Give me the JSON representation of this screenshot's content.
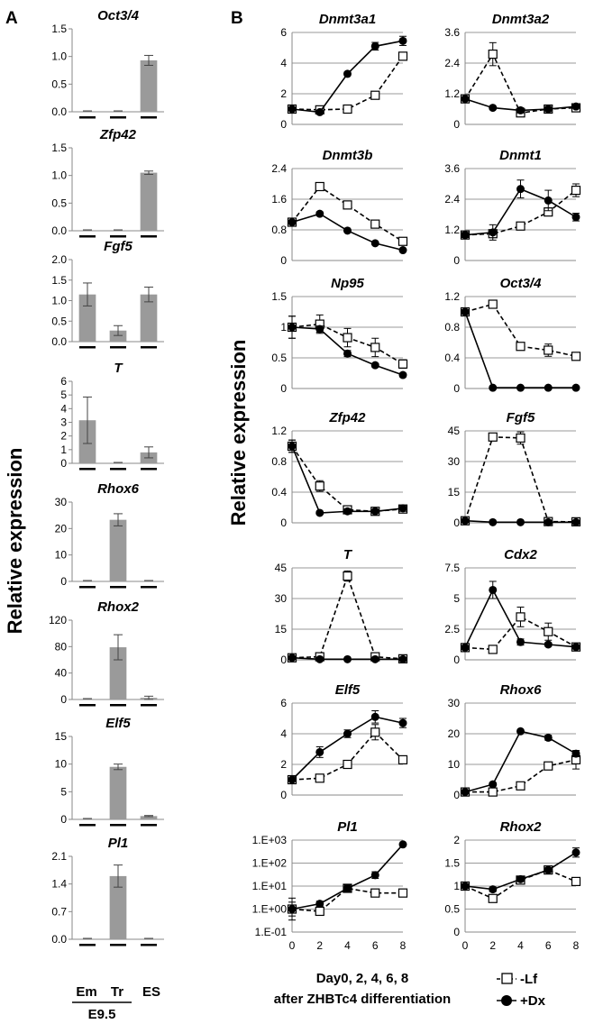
{
  "panel_labels": {
    "a": "A",
    "b": "B"
  },
  "ylabel": "Relative expression",
  "left_x": {
    "categories": [
      "Em",
      "Tr",
      "ES"
    ],
    "group_label": "E9.5"
  },
  "right_x": {
    "caption_line1": "Day0, 2, 4, 6, 8",
    "caption_line2": "after ZHBTc4 differentiation"
  },
  "legend": {
    "lf": "-Lf",
    "dx": "+Dx"
  },
  "chart_data": [
    {
      "type": "bar",
      "panel": "A",
      "title": "Oct3/4",
      "categories": [
        "Em",
        "Tr",
        "ES"
      ],
      "values": [
        0,
        0,
        0.93
      ],
      "errors": [
        0,
        0,
        0.09
      ],
      "ylim": [
        0,
        1.5
      ],
      "yticks": [
        "0.0",
        "0.5",
        "1.0",
        "1.5"
      ]
    },
    {
      "type": "bar",
      "panel": "A",
      "title": "Zfp42",
      "categories": [
        "Em",
        "Tr",
        "ES"
      ],
      "values": [
        0,
        0,
        1.05
      ],
      "errors": [
        0,
        0,
        0.03
      ],
      "ylim": [
        0,
        1.5
      ],
      "yticks": [
        "0.0",
        "0.5",
        "1.0",
        "1.5"
      ]
    },
    {
      "type": "bar",
      "panel": "A",
      "title": "Fgf5",
      "categories": [
        "Em",
        "Tr",
        "ES"
      ],
      "values": [
        1.15,
        0.27,
        1.15
      ],
      "errors": [
        0.28,
        0.12,
        0.18
      ],
      "ylim": [
        0,
        2
      ],
      "yticks": [
        "0.0",
        "0.5",
        "1.0",
        "1.5",
        "2.0"
      ]
    },
    {
      "type": "bar",
      "panel": "A",
      "title": "T",
      "categories": [
        "Em",
        "Tr",
        "ES"
      ],
      "values": [
        3.15,
        0,
        0.8
      ],
      "errors": [
        1.7,
        0,
        0.4
      ],
      "ylim": [
        0,
        6
      ],
      "yticks": [
        "0",
        "1",
        "2",
        "3",
        "4",
        "5",
        "6"
      ]
    },
    {
      "type": "bar",
      "panel": "A",
      "title": "Rhox6",
      "categories": [
        "Em",
        "Tr",
        "ES"
      ],
      "values": [
        0,
        23.3,
        0
      ],
      "errors": [
        0,
        2.3,
        0
      ],
      "ylim": [
        0,
        30
      ],
      "yticks": [
        "0",
        "10",
        "20",
        "30"
      ]
    },
    {
      "type": "bar",
      "panel": "A",
      "title": "Rhox2",
      "categories": [
        "Em",
        "Tr",
        "ES"
      ],
      "values": [
        0,
        79,
        2.5
      ],
      "errors": [
        0,
        19,
        2.5
      ],
      "ylim": [
        0,
        120
      ],
      "yticks": [
        "0",
        "40",
        "80",
        "120"
      ]
    },
    {
      "type": "bar",
      "panel": "A",
      "title": "Elf5",
      "categories": [
        "Em",
        "Tr",
        "ES"
      ],
      "values": [
        0,
        9.5,
        0.6
      ],
      "errors": [
        0,
        0.5,
        0.1
      ],
      "ylim": [
        0,
        15
      ],
      "yticks": [
        "0",
        "5",
        "10",
        "15"
      ]
    },
    {
      "type": "bar",
      "panel": "A",
      "title": "Pl1",
      "categories": [
        "Em",
        "Tr",
        "ES"
      ],
      "values": [
        0,
        1.6,
        0
      ],
      "errors": [
        0,
        0.28,
        0
      ],
      "ylim": [
        0,
        2.1
      ],
      "yticks": [
        "0.0",
        "0.7",
        "1.4",
        "2.1"
      ]
    },
    {
      "type": "line",
      "panel": "B",
      "title": "Dnmt3a1",
      "x": [
        0,
        2,
        4,
        6,
        8
      ],
      "series": [
        {
          "name": "-Lf",
          "values": [
            1,
            0.95,
            1.0,
            1.9,
            4.45
          ],
          "errors": [
            0.1,
            0.1,
            0.2,
            0.1,
            0.25
          ]
        },
        {
          "name": "+Dx",
          "values": [
            1,
            0.8,
            3.3,
            5.1,
            5.45
          ],
          "errors": [
            0.1,
            0.1,
            0.12,
            0.25,
            0.3
          ]
        }
      ],
      "ylim": [
        0,
        6
      ],
      "yticks": [
        "0",
        "2",
        "4",
        "6"
      ]
    },
    {
      "type": "line",
      "panel": "B",
      "title": "Dnmt3a2",
      "x": [
        0,
        2,
        4,
        6,
        8
      ],
      "series": [
        {
          "name": "-Lf",
          "values": [
            1,
            2.75,
            0.45,
            0.6,
            0.65
          ],
          "errors": [
            0.05,
            0.45,
            0.1,
            0.1,
            0.1
          ]
        },
        {
          "name": "+Dx",
          "values": [
            1,
            0.65,
            0.55,
            0.6,
            0.7
          ],
          "errors": [
            0.05,
            0.05,
            0.1,
            0.1,
            0.05
          ]
        }
      ],
      "ylim": [
        0,
        3.6
      ],
      "yticks": [
        "0",
        "1.2",
        "2.4",
        "3.6"
      ]
    },
    {
      "type": "line",
      "panel": "B",
      "title": "Dnmt3b",
      "x": [
        0,
        2,
        4,
        6,
        8
      ],
      "series": [
        {
          "name": "-Lf",
          "values": [
            1,
            1.93,
            1.45,
            0.95,
            0.5
          ],
          "errors": [
            0.05,
            0.1,
            0.05,
            0.08,
            0.05
          ]
        },
        {
          "name": "+Dx",
          "values": [
            1,
            1.22,
            0.78,
            0.45,
            0.27
          ],
          "errors": [
            0.05,
            0.05,
            0.03,
            0.03,
            0.03
          ]
        }
      ],
      "ylim": [
        0,
        2.4
      ],
      "yticks": [
        "0",
        "0.8",
        "1.6",
        "2.4"
      ]
    },
    {
      "type": "line",
      "panel": "B",
      "title": "Dnmt1",
      "x": [
        0,
        2,
        4,
        6,
        8
      ],
      "series": [
        {
          "name": "-Lf",
          "values": [
            1,
            1.05,
            1.35,
            1.9,
            2.75
          ],
          "errors": [
            0.1,
            0.1,
            0.15,
            0.15,
            0.25
          ]
        },
        {
          "name": "+Dx",
          "values": [
            1,
            1.1,
            2.8,
            2.35,
            1.7
          ],
          "errors": [
            0.1,
            0.3,
            0.35,
            0.4,
            0.15
          ]
        }
      ],
      "ylim": [
        0,
        3.6
      ],
      "yticks": [
        "0",
        "1.2",
        "2.4",
        "3.6"
      ]
    },
    {
      "type": "line",
      "panel": "B",
      "title": "Np95",
      "x": [
        0,
        2,
        4,
        6,
        8
      ],
      "series": [
        {
          "name": "-Lf",
          "values": [
            1,
            1.05,
            0.83,
            0.67,
            0.4
          ],
          "errors": [
            0.18,
            0.15,
            0.15,
            0.15,
            0.07
          ]
        },
        {
          "name": "+Dx",
          "values": [
            1,
            0.97,
            0.57,
            0.38,
            0.22
          ],
          "errors": [
            0.18,
            0.05,
            0.05,
            0.03,
            0.03
          ]
        }
      ],
      "ylim": [
        0,
        1.5
      ],
      "yticks": [
        "0",
        "0.5",
        "1",
        "1.5"
      ]
    },
    {
      "type": "line",
      "panel": "B",
      "title": "Oct3/4",
      "x": [
        0,
        2,
        4,
        6,
        8
      ],
      "series": [
        {
          "name": "-Lf",
          "values": [
            1,
            1.1,
            0.55,
            0.5,
            0.42
          ],
          "errors": [
            0.03,
            0.03,
            0.03,
            0.08,
            0.05
          ]
        },
        {
          "name": "+Dx",
          "values": [
            1,
            0.01,
            0.01,
            0.01,
            0.01
          ],
          "errors": [
            0.03,
            0.01,
            0.01,
            0.01,
            0.01
          ]
        }
      ],
      "ylim": [
        0,
        1.2
      ],
      "yticks": [
        "0",
        "0.4",
        "0.8",
        "1.2"
      ]
    },
    {
      "type": "line",
      "panel": "B",
      "title": "Zfp42",
      "x": [
        0,
        2,
        4,
        6,
        8
      ],
      "series": [
        {
          "name": "-Lf",
          "values": [
            1,
            0.48,
            0.17,
            0.15,
            0.18
          ],
          "errors": [
            0.08,
            0.07,
            0.03,
            0.02,
            0.03
          ]
        },
        {
          "name": "+Dx",
          "values": [
            1,
            0.13,
            0.15,
            0.15,
            0.19
          ],
          "errors": [
            0.08,
            0.02,
            0.03,
            0.02,
            0.04
          ]
        }
      ],
      "ylim": [
        0,
        1.2
      ],
      "yticks": [
        "0",
        "0.4",
        "0.8",
        "1.2"
      ]
    },
    {
      "type": "line",
      "panel": "B",
      "title": "Fgf5",
      "x": [
        0,
        2,
        4,
        6,
        8
      ],
      "series": [
        {
          "name": "-Lf",
          "values": [
            1,
            42,
            41.5,
            0.6,
            0.5
          ],
          "errors": [
            0.2,
            1.5,
            3,
            0.2,
            0.2
          ]
        },
        {
          "name": "+Dx",
          "values": [
            1,
            0.3,
            0.3,
            0.3,
            0.3
          ],
          "errors": [
            0.2,
            0.1,
            0.1,
            0.1,
            0.1
          ]
        }
      ],
      "ylim": [
        0,
        45
      ],
      "yticks": [
        "0",
        "15",
        "30",
        "45"
      ]
    },
    {
      "type": "line",
      "panel": "B",
      "title": "T",
      "x": [
        0,
        2,
        4,
        6,
        8
      ],
      "series": [
        {
          "name": "-Lf",
          "values": [
            1,
            1.5,
            41,
            1.5,
            0.5
          ],
          "errors": [
            0.3,
            0.3,
            2.5,
            0.3,
            0.2
          ]
        },
        {
          "name": "+Dx",
          "values": [
            1,
            0.3,
            0.3,
            0.3,
            0.3
          ],
          "errors": [
            0.3,
            0.1,
            0.1,
            0.1,
            0.1
          ]
        }
      ],
      "ylim": [
        0,
        45
      ],
      "yticks": [
        "0",
        "15",
        "30",
        "45"
      ]
    },
    {
      "type": "line",
      "panel": "B",
      "title": "Cdx2",
      "x": [
        0,
        2,
        4,
        6,
        8
      ],
      "series": [
        {
          "name": "-Lf",
          "values": [
            1,
            0.85,
            3.5,
            2.3,
            1.05
          ],
          "errors": [
            0.15,
            0.1,
            0.8,
            0.7,
            0.2
          ]
        },
        {
          "name": "+Dx",
          "values": [
            1,
            5.7,
            1.45,
            1.25,
            1.05
          ],
          "errors": [
            0.15,
            0.7,
            0.25,
            0.15,
            0.15
          ]
        }
      ],
      "ylim": [
        0,
        7.5
      ],
      "yticks": [
        "0",
        "2.5",
        "5",
        "7.5"
      ]
    },
    {
      "type": "line",
      "panel": "B",
      "title": "Elf5",
      "x": [
        0,
        2,
        4,
        6,
        8
      ],
      "series": [
        {
          "name": "-Lf",
          "values": [
            1,
            1.1,
            2.0,
            4.1,
            2.3
          ],
          "errors": [
            0.1,
            0.1,
            0.25,
            0.5,
            0.25
          ]
        },
        {
          "name": "+Dx",
          "values": [
            1,
            2.8,
            4.0,
            5.1,
            4.7
          ],
          "errors": [
            0.1,
            0.35,
            0.25,
            0.4,
            0.3
          ]
        }
      ],
      "ylim": [
        0,
        6
      ],
      "yticks": [
        "0",
        "2",
        "4",
        "6"
      ]
    },
    {
      "type": "line",
      "panel": "B",
      "title": "Rhox6",
      "x": [
        0,
        2,
        4,
        6,
        8
      ],
      "series": [
        {
          "name": "-Lf",
          "values": [
            1,
            1,
            3,
            9.5,
            11.5
          ],
          "errors": [
            0.3,
            0.3,
            0.3,
            0.5,
            3
          ]
        },
        {
          "name": "+Dx",
          "values": [
            1,
            3.5,
            20.8,
            18.7,
            13.5
          ],
          "errors": [
            0.3,
            0.5,
            0.4,
            0.8,
            1
          ]
        }
      ],
      "ylim": [
        0,
        30
      ],
      "yticks": [
        "0",
        "10",
        "20",
        "30"
      ]
    },
    {
      "type": "line",
      "panel": "B",
      "title": "Pl1",
      "x": [
        0,
        2,
        4,
        6,
        8
      ],
      "yscale": "log",
      "series": [
        {
          "name": "-Lf",
          "values": [
            1,
            0.8,
            8,
            5,
            5
          ],
          "errors": [
            2,
            0.3,
            3,
            2,
            2
          ]
        },
        {
          "name": "+Dx",
          "values": [
            1,
            1.7,
            8,
            30,
            650
          ],
          "errors": [
            1,
            0.5,
            3,
            12,
            60
          ]
        }
      ],
      "ylim": [
        0.1,
        1000
      ],
      "yticks": [
        "1.E-01",
        "1.E+00",
        "1.E+01",
        "1.E+02",
        "1.E+03"
      ]
    },
    {
      "type": "line",
      "panel": "B",
      "title": "Rhox2",
      "x": [
        0,
        2,
        4,
        6,
        8
      ],
      "series": [
        {
          "name": "-Lf",
          "values": [
            1,
            0.73,
            1.13,
            1.35,
            1.1
          ],
          "errors": [
            0.05,
            0.07,
            0.05,
            0.07,
            0.07
          ]
        },
        {
          "name": "+Dx",
          "values": [
            1,
            0.93,
            1.15,
            1.35,
            1.73
          ],
          "errors": [
            0.05,
            0.05,
            0.05,
            0.05,
            0.1
          ]
        }
      ],
      "ylim": [
        0,
        2
      ],
      "yticks": [
        "0",
        "0.5",
        "1",
        "1.5",
        "2"
      ]
    }
  ]
}
